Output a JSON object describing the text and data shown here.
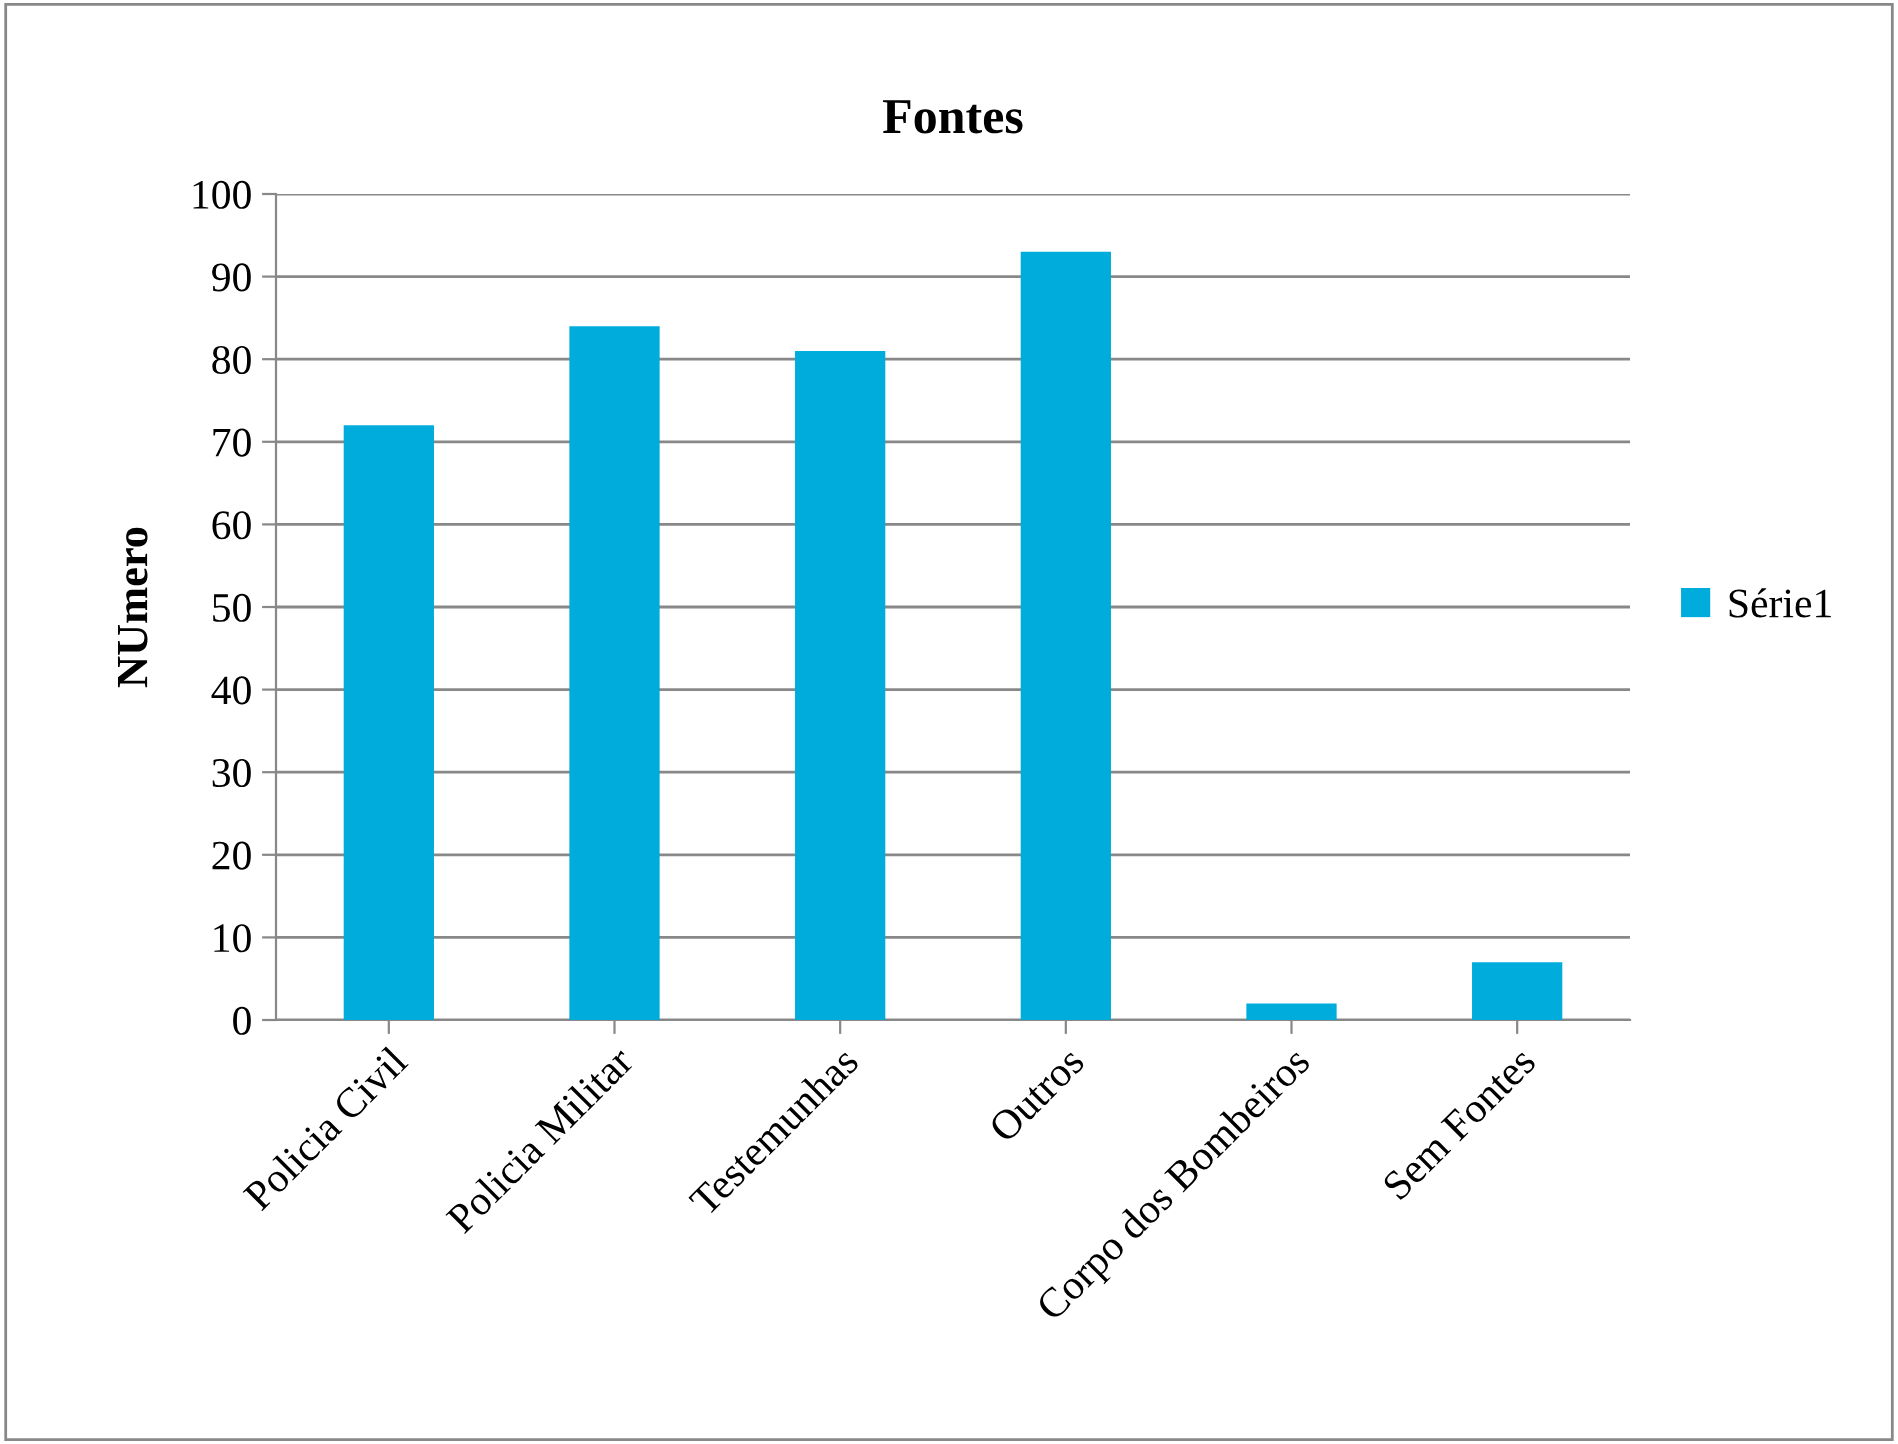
{
  "chart_data": {
    "type": "bar",
    "title": "Fontes",
    "ylabel": "NUmero",
    "categories": [
      "Policia Civil",
      "Policia Militar",
      "Testemunhas",
      "Outros",
      "Corpo dos Bombeiros",
      "Sem Fontes"
    ],
    "series": [
      {
        "name": "Série1",
        "color": "#00acdc",
        "values": [
          72,
          84,
          81,
          93,
          2,
          7
        ]
      }
    ],
    "ylim": [
      0,
      100
    ],
    "yticks": [
      0,
      10,
      20,
      30,
      40,
      50,
      60,
      70,
      80,
      90,
      100
    ],
    "grid": "y",
    "legend": "right"
  }
}
